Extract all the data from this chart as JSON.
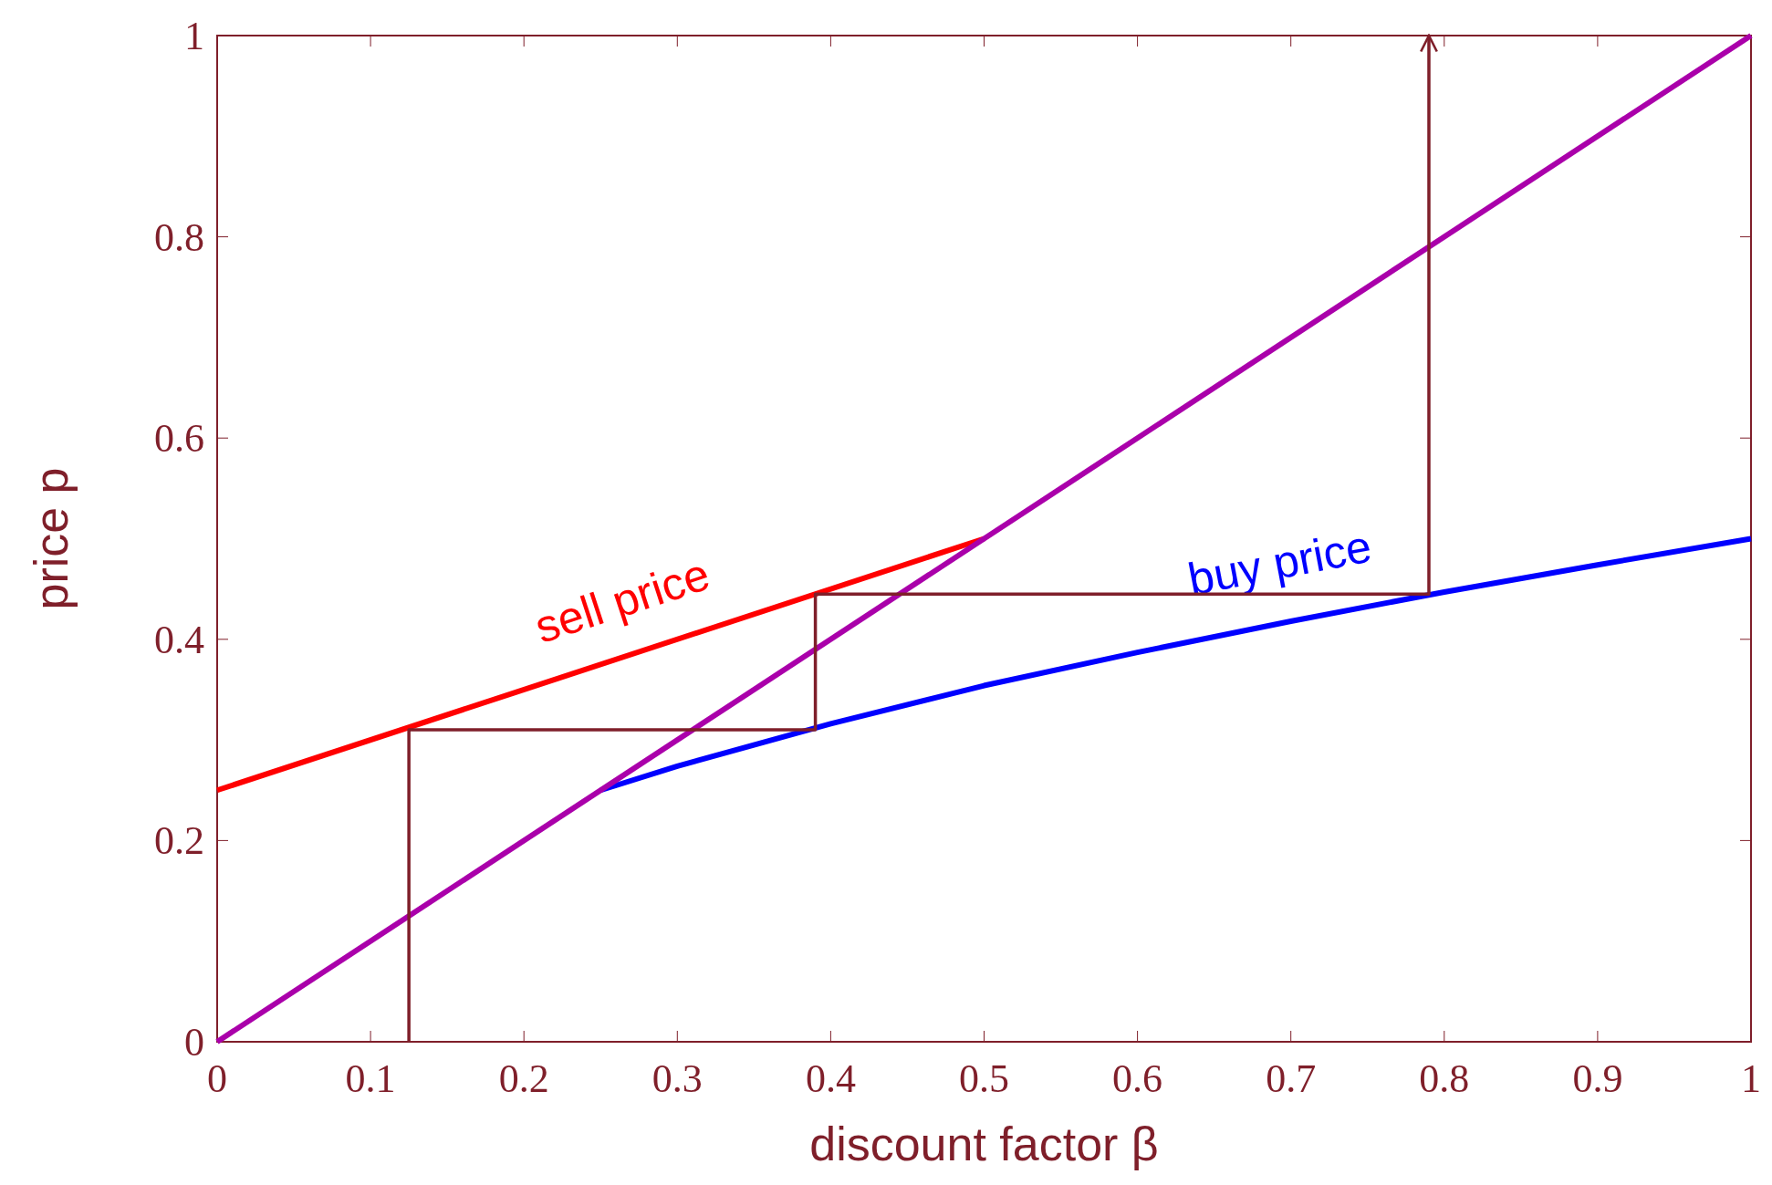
{
  "chart_data": {
    "type": "line",
    "xlabel": "discount factor β",
    "ylabel": "price p",
    "xlim": [
      0,
      1
    ],
    "ylim": [
      0,
      1
    ],
    "xticks": [
      0,
      0.1,
      0.2,
      0.3,
      0.4,
      0.5,
      0.6,
      0.7,
      0.8,
      0.9,
      1
    ],
    "yticks": [
      0,
      0.2,
      0.4,
      0.6,
      0.8,
      1
    ],
    "grid": false,
    "marker": "none",
    "line_style": "solid",
    "series": [
      {
        "name": "sell price",
        "color": "#ff0000",
        "x": [
          0,
          0.5
        ],
        "values": [
          0.25,
          0.5
        ]
      },
      {
        "name": "buy price",
        "color": "#0000ff",
        "x": [
          0.25,
          0.3,
          0.4,
          0.5,
          0.6,
          0.7,
          0.8,
          0.9,
          1
        ],
        "values": [
          0.25,
          0.274,
          0.316,
          0.354,
          0.387,
          0.418,
          0.447,
          0.474,
          0.5
        ]
      },
      {
        "color": "#aa00aa",
        "x": [
          0,
          1
        ],
        "values": [
          0,
          1
        ]
      },
      {
        "color": "#7f1f2a",
        "x": [
          0.125,
          0.125,
          0.39,
          0.39,
          0.79,
          0.79
        ],
        "values": [
          0,
          0.31,
          0.31,
          0.445,
          0.445,
          1
        ]
      }
    ]
  }
}
